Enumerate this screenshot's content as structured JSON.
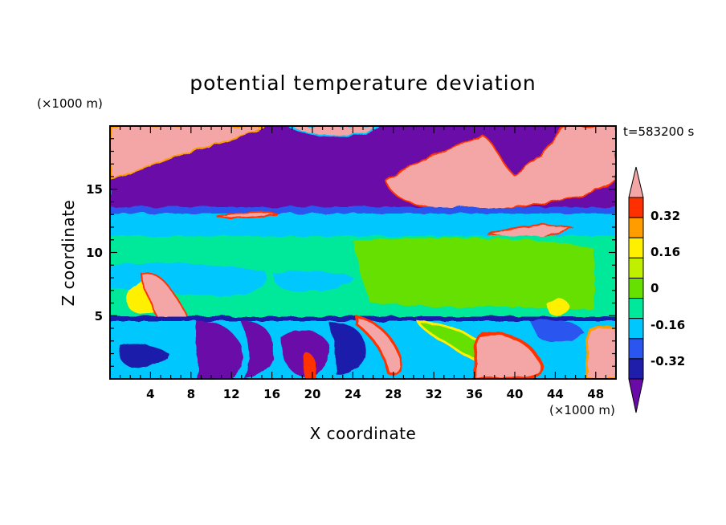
{
  "chart_data": {
    "type": "heatmap",
    "title": "potential temperature deviation",
    "xlabel": "X coordinate",
    "ylabel": "Z coordinate",
    "x_unit": "(×1000 m)",
    "y_unit": "(×1000 m)",
    "time_label": "t=583200 s",
    "xlim": [
      0,
      50
    ],
    "ylim": [
      0,
      20
    ],
    "x_ticks": [
      "4",
      "8",
      "12",
      "16",
      "20",
      "24",
      "28",
      "32",
      "36",
      "40",
      "44",
      "48"
    ],
    "y_ticks": [
      "5",
      "10",
      "15"
    ],
    "colorbar": {
      "levels": [
        -0.4,
        -0.32,
        -0.24,
        -0.16,
        -0.08,
        0,
        0.08,
        0.16,
        0.24,
        0.32,
        0.4
      ],
      "labels": [
        "0.32",
        "0.16",
        "0",
        "-0.16",
        "-0.32"
      ],
      "label_values": [
        0.32,
        0.16,
        0,
        -0.16,
        -0.32
      ],
      "colors": [
        "#6a0aa8",
        "#1e1eaa",
        "#2a55ee",
        "#00c8ff",
        "#00e89a",
        "#66e000",
        "#c0f000",
        "#fff000",
        "#ff9c00",
        "#ff3000",
        "#f4a6a6"
      ]
    }
  }
}
